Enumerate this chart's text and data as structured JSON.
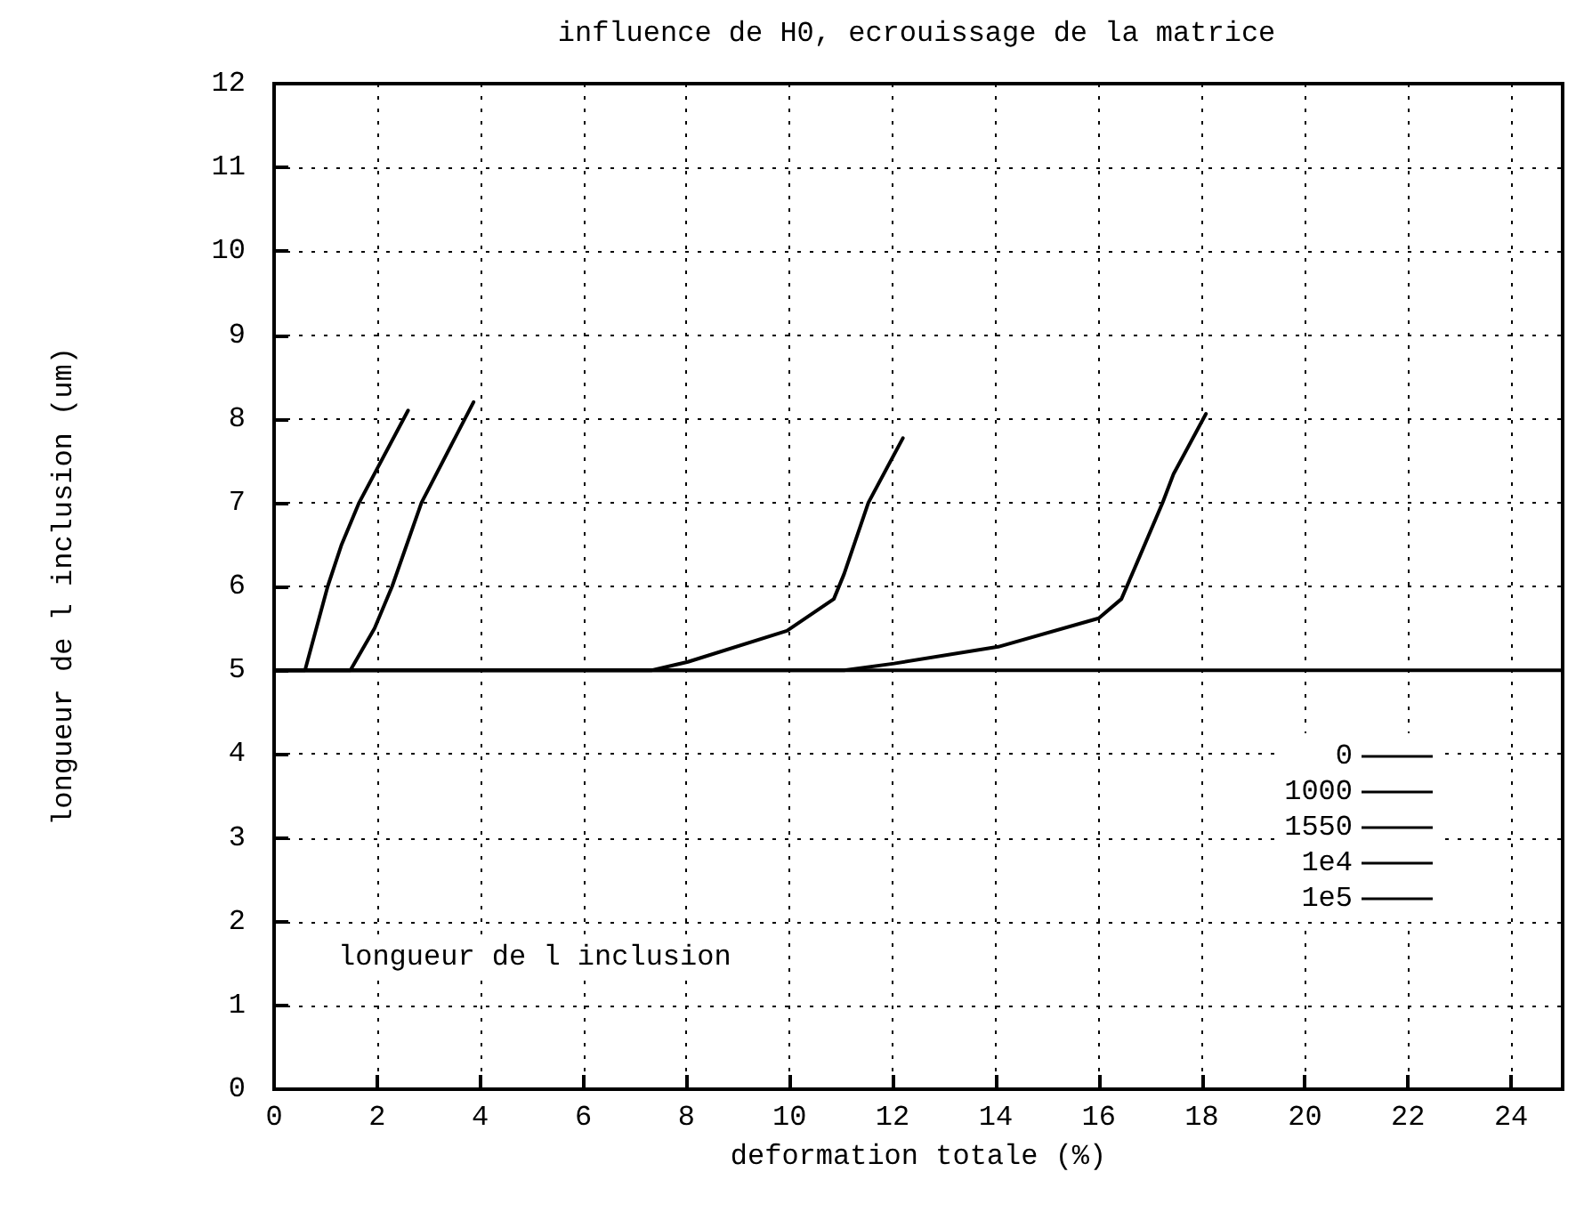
{
  "chart_data": {
    "type": "line",
    "title": "influence de H0, ecrouissage de la matrice",
    "xlabel": "deformation totale (%)",
    "ylabel": "longueur de l inclusion (um)",
    "annotations": [
      "longueur de l inclusion"
    ],
    "xlim": [
      0,
      25
    ],
    "xticks": [
      0,
      2,
      4,
      6,
      8,
      10,
      12,
      14,
      16,
      18,
      20,
      22,
      24
    ],
    "ylim": [
      0,
      12
    ],
    "yticks": [
      0,
      1,
      2,
      3,
      4,
      5,
      6,
      7,
      8,
      9,
      10,
      11,
      12
    ],
    "grid": true,
    "legend": "right",
    "marker": "none",
    "line_style": "solid",
    "series": [
      {
        "name": "0",
        "color": "#000000",
        "x": [
          0,
          0.6,
          1.04,
          1.31,
          1.65,
          2.6
        ],
        "values": [
          5,
          5,
          6,
          6.5,
          7,
          8.1
        ]
      },
      {
        "name": "1000",
        "color": "#000000",
        "x": [
          0,
          1.48,
          1.95,
          2.29,
          2.86,
          3.87
        ],
        "values": [
          5,
          5,
          5.5,
          6,
          7,
          8.2
        ]
      },
      {
        "name": "1550",
        "color": "#000000",
        "x": [
          0,
          7.33,
          8.03,
          9.95,
          10.86,
          11.06,
          11.53,
          12.2
        ],
        "values": [
          5,
          5,
          5.1,
          5.47,
          5.85,
          6.15,
          7,
          7.77
        ]
      },
      {
        "name": "1e4",
        "color": "#000000",
        "x": [
          0,
          11.06,
          12.03,
          14.05,
          16,
          16.44,
          16.74,
          17.24,
          17.45,
          18.08
        ],
        "values": [
          5,
          5,
          5.08,
          5.28,
          5.62,
          5.85,
          6.28,
          7,
          7.34,
          8.06
        ]
      },
      {
        "name": "1e5",
        "color": "#000000",
        "x": [
          0,
          25
        ],
        "values": [
          5,
          5
        ]
      }
    ]
  }
}
